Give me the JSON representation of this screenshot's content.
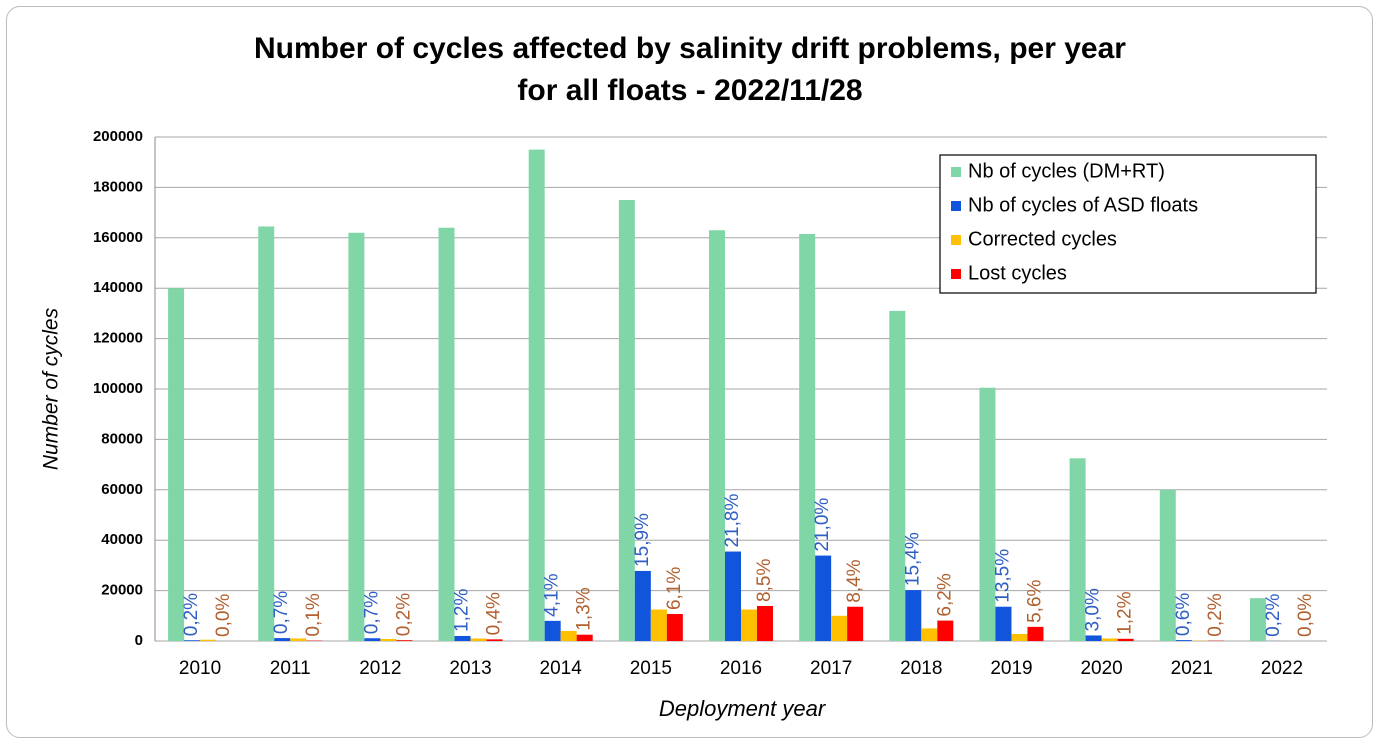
{
  "chart_data": {
    "type": "bar",
    "title": [
      "Number of cycles affected by salinity drift problems, per year",
      "for all floats - 2022/11/28"
    ],
    "x_label": "Deployment year",
    "y_label": "Number of cycles",
    "categories": [
      "2010",
      "2011",
      "2012",
      "2013",
      "2014",
      "2015",
      "2016",
      "2017",
      "2018",
      "2019",
      "2020",
      "2021",
      "2022"
    ],
    "series": [
      {
        "name": "Nb of cycles (DM+RT)",
        "color": "#80d6a6",
        "values": [
          140000,
          164500,
          162000,
          164000,
          195000,
          175000,
          163000,
          161500,
          131000,
          100500,
          72500,
          60000,
          17000
        ]
      },
      {
        "name": "Nb of cycles of ASD floats",
        "color": "#1155dd",
        "label_color": "#2f5fc4",
        "values": [
          300,
          1150,
          1100,
          2000,
          8000,
          27800,
          35500,
          33900,
          20200,
          13600,
          2200,
          360,
          34
        ],
        "labels": [
          "0,2%",
          "0,7%",
          "0,7%",
          "1,2%",
          "4,1%",
          "15,9%",
          "21,8%",
          "21,0%",
          "15,4%",
          "13,5%",
          "3,0%",
          "0,6%",
          "0,2%"
        ]
      },
      {
        "name": "Corrected cycles",
        "color": "#ffc000",
        "values": [
          500,
          1000,
          800,
          1000,
          4000,
          12500,
          12500,
          10000,
          5000,
          2800,
          1000,
          100,
          0
        ]
      },
      {
        "name": "Lost cycles",
        "color": "#ff0000",
        "label_color": "#b0602e",
        "values": [
          0,
          160,
          320,
          650,
          2500,
          10700,
          13900,
          13600,
          8100,
          5600,
          870,
          120,
          0
        ],
        "labels": [
          "0,0%",
          "0,1%",
          "0,2%",
          "0,4%",
          "1,3%",
          "6,1%",
          "8,5%",
          "8,4%",
          "6,2%",
          "5,6%",
          "1,2%",
          "0,2%",
          "0,0%"
        ]
      }
    ],
    "ylim": [
      0,
      200000
    ],
    "yticks": [
      0,
      20000,
      40000,
      60000,
      80000,
      100000,
      120000,
      140000,
      160000,
      180000,
      200000
    ],
    "grid": true,
    "legend": "top right"
  }
}
